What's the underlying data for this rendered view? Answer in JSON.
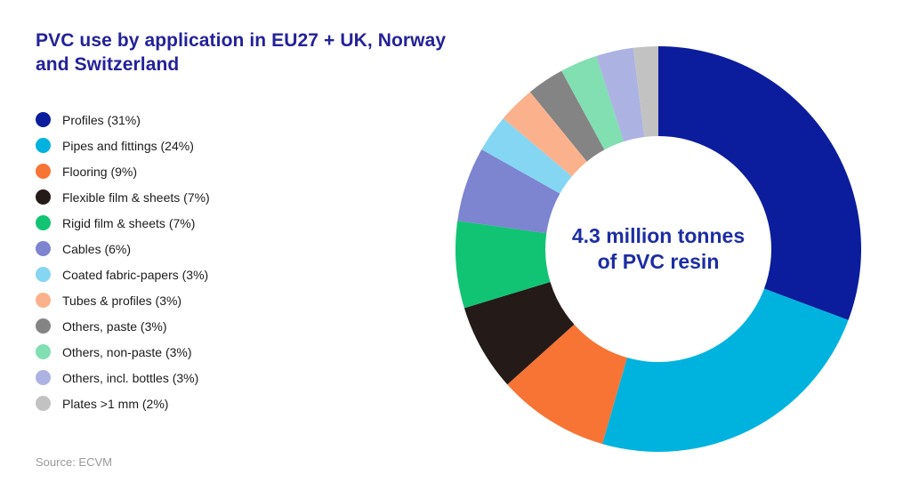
{
  "title": {
    "line1": "PVC use by application in EU27 + UK, Norway",
    "line2": "and Switzerland"
  },
  "source": "Source: ECVM",
  "colors": {
    "background": "#ffffff",
    "title_text": "#232299",
    "center_text": "#1c2da4",
    "legend_text": "#1b1b1b",
    "source_text": "#9a9a9a"
  },
  "chart_data": {
    "type": "pie",
    "subtype": "donut",
    "title": "PVC use by application in EU27 + UK, Norway and Switzerland",
    "center_label": {
      "line1": "4.3 million tonnes",
      "line2": "of PVC resin"
    },
    "legend_position": "left",
    "start_angle_deg": 0,
    "direction": "clockwise",
    "inner_radius_ratio": 0.557,
    "segments": [
      {
        "label": "Profiles",
        "pct": 31,
        "color": "#0b1c9c"
      },
      {
        "label": "Pipes and fittings",
        "pct": 24,
        "color": "#00b3df"
      },
      {
        "label": "Flooring",
        "pct": 9,
        "color": "#f87434"
      },
      {
        "label": "Flexible film & sheets",
        "pct": 7,
        "color": "#241a18"
      },
      {
        "label": "Rigid film & sheets",
        "pct": 7,
        "color": "#10c474"
      },
      {
        "label": "Cables",
        "pct": 6,
        "color": "#7d84d0"
      },
      {
        "label": "Coated fabric-papers",
        "pct": 3,
        "color": "#85d6f2"
      },
      {
        "label": "Tubes & profiles",
        "pct": 3,
        "color": "#fbb28c"
      },
      {
        "label": "Others, paste",
        "pct": 3,
        "color": "#848484"
      },
      {
        "label": "Others, non-paste",
        "pct": 3,
        "color": "#81dfb2"
      },
      {
        "label": "Others, incl. bottles",
        "pct": 3,
        "color": "#acb3e3"
      },
      {
        "label": "Plates >1 mm",
        "pct": 2,
        "color": "#c2c2c2"
      }
    ]
  }
}
